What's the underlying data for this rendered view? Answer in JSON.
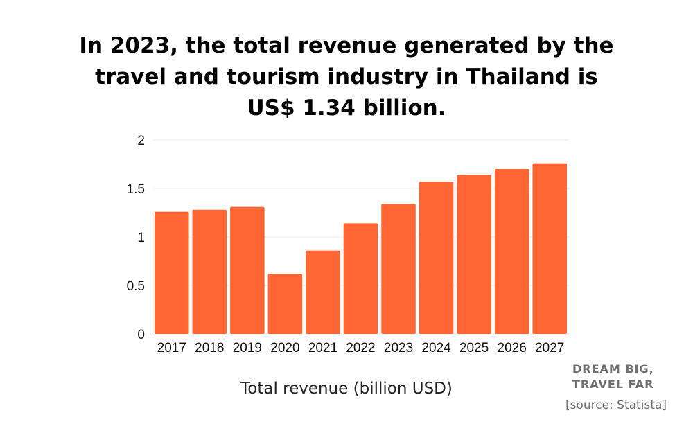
{
  "title": {
    "line1": "In 2023, the total revenue generated by the",
    "line2": "travel and tourism industry in Thailand is",
    "line3": "US$ 1.34 billion."
  },
  "chart_data": {
    "type": "bar",
    "categories": [
      "2017",
      "2018",
      "2019",
      "2020",
      "2021",
      "2022",
      "2023",
      "2024",
      "2025",
      "2026",
      "2027"
    ],
    "values": [
      1.26,
      1.28,
      1.31,
      0.62,
      0.86,
      1.14,
      1.34,
      1.57,
      1.64,
      1.7,
      1.76
    ],
    "xlabel": "Total revenue (billion USD)",
    "ylabel": "",
    "ylim": [
      0,
      2
    ],
    "yticks": [
      "0",
      "0.5",
      "1",
      "1.5",
      "2"
    ],
    "grid": true,
    "bar_color": "#ff6633"
  },
  "branding": {
    "line1": "DREAM BIG,",
    "line2": "TRAVEL FAR"
  },
  "source": "[source: Statista]"
}
